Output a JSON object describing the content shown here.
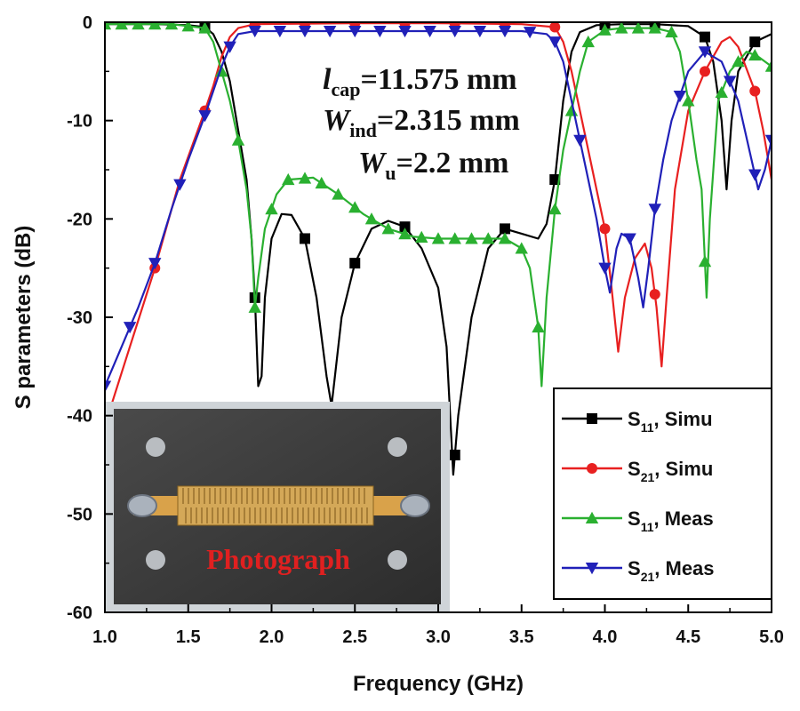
{
  "chart_data": {
    "type": "line",
    "xlabel": "Frequency (GHz)",
    "ylabel": "S parameters (dB)",
    "xlim": [
      1.0,
      5.0
    ],
    "ylim": [
      -60,
      0
    ],
    "xticks": [
      1.0,
      1.5,
      2.0,
      2.5,
      3.0,
      3.5,
      4.0,
      4.5,
      5.0
    ],
    "xtick_labels": [
      "1.0",
      "1.5",
      "2.0",
      "2.5",
      "3.0",
      "3.5",
      "4.0",
      "4.5",
      "5.0"
    ],
    "yticks": [
      0,
      -10,
      -20,
      -30,
      -40,
      -50,
      -60
    ],
    "ytick_labels": [
      "0",
      "-10",
      "-20",
      "-30",
      "-40",
      "-50",
      "-60"
    ],
    "annotations": [
      {
        "main": "l",
        "sub": "cap",
        "rest": "=11.575 mm"
      },
      {
        "main": "W",
        "sub": "ind",
        "rest": "=2.315 mm"
      },
      {
        "main": "W",
        "sub": "u",
        "rest": "=2.2 mm"
      }
    ],
    "inset_caption": "Photograph",
    "legend_position": "bottom-right",
    "series": [
      {
        "name": "S11, Simu",
        "legend_main": "S",
        "legend_sub": "11",
        "legend_rest": ", Simu",
        "color": "#000000",
        "marker": "square",
        "points": [
          [
            1.0,
            -0.2
          ],
          [
            1.3,
            -0.2
          ],
          [
            1.5,
            -0.3
          ],
          [
            1.6,
            -0.5
          ],
          [
            1.65,
            -1.2
          ],
          [
            1.7,
            -3
          ],
          [
            1.75,
            -6
          ],
          [
            1.8,
            -11
          ],
          [
            1.85,
            -16
          ],
          [
            1.88,
            -22
          ],
          [
            1.9,
            -28
          ],
          [
            1.92,
            -37
          ],
          [
            1.94,
            -36
          ],
          [
            1.96,
            -28
          ],
          [
            2.0,
            -22
          ],
          [
            2.06,
            -19.5
          ],
          [
            2.12,
            -19.6
          ],
          [
            2.2,
            -22
          ],
          [
            2.27,
            -28
          ],
          [
            2.33,
            -36
          ],
          [
            2.36,
            -39
          ],
          [
            2.38,
            -36
          ],
          [
            2.42,
            -30
          ],
          [
            2.5,
            -24.5
          ],
          [
            2.6,
            -21
          ],
          [
            2.7,
            -20.2
          ],
          [
            2.8,
            -20.8
          ],
          [
            2.9,
            -23
          ],
          [
            3.0,
            -27
          ],
          [
            3.05,
            -33
          ],
          [
            3.09,
            -46
          ],
          [
            3.12,
            -40
          ],
          [
            3.2,
            -30
          ],
          [
            3.3,
            -23
          ],
          [
            3.4,
            -21
          ],
          [
            3.5,
            -21.5
          ],
          [
            3.6,
            -22
          ],
          [
            3.65,
            -20.5
          ],
          [
            3.7,
            -16
          ],
          [
            3.75,
            -8
          ],
          [
            3.8,
            -3
          ],
          [
            3.85,
            -1
          ],
          [
            3.95,
            -0.3
          ],
          [
            4.1,
            -0.2
          ],
          [
            4.3,
            -0.2
          ],
          [
            4.5,
            -0.4
          ],
          [
            4.6,
            -1.5
          ],
          [
            4.65,
            -4
          ],
          [
            4.7,
            -10
          ],
          [
            4.73,
            -17
          ],
          [
            4.76,
            -10
          ],
          [
            4.8,
            -5
          ],
          [
            4.9,
            -2
          ],
          [
            5.0,
            -1.2
          ]
        ],
        "marker_x": [
          1.6,
          1.9,
          2.2,
          2.5,
          2.8,
          3.1,
          3.4,
          3.7,
          4.0,
          4.3,
          4.6,
          4.9
        ]
      },
      {
        "name": "S21, Simu",
        "legend_main": "S",
        "legend_sub": "21",
        "legend_rest": ", Simu",
        "color": "#e82020",
        "marker": "circle",
        "points": [
          [
            1.0,
            -41
          ],
          [
            1.15,
            -33
          ],
          [
            1.3,
            -25
          ],
          [
            1.45,
            -16
          ],
          [
            1.6,
            -9
          ],
          [
            1.65,
            -6.5
          ],
          [
            1.7,
            -3.5
          ],
          [
            1.75,
            -1.5
          ],
          [
            1.8,
            -0.6
          ],
          [
            1.9,
            -0.2
          ],
          [
            2.5,
            -0.1
          ],
          [
            3.0,
            -0.1
          ],
          [
            3.5,
            -0.2
          ],
          [
            3.7,
            -0.5
          ],
          [
            3.75,
            -2
          ],
          [
            3.8,
            -5
          ],
          [
            3.85,
            -9
          ],
          [
            3.9,
            -13
          ],
          [
            3.95,
            -17
          ],
          [
            4.0,
            -21
          ],
          [
            4.04,
            -27
          ],
          [
            4.08,
            -33.5
          ],
          [
            4.12,
            -28
          ],
          [
            4.18,
            -24
          ],
          [
            4.24,
            -22.5
          ],
          [
            4.28,
            -25
          ],
          [
            4.31,
            -29
          ],
          [
            4.34,
            -35
          ],
          [
            4.37,
            -28
          ],
          [
            4.42,
            -17
          ],
          [
            4.5,
            -9
          ],
          [
            4.6,
            -5
          ],
          [
            4.7,
            -2
          ],
          [
            4.75,
            -1.5
          ],
          [
            4.8,
            -2.5
          ],
          [
            4.9,
            -7
          ],
          [
            4.95,
            -11
          ],
          [
            5.0,
            -16
          ]
        ],
        "marker_x": [
          1.3,
          1.6,
          1.9,
          2.2,
          2.5,
          2.8,
          3.1,
          3.4,
          3.7,
          4.0,
          4.3,
          4.6,
          4.9
        ]
      },
      {
        "name": "S11, Meas",
        "legend_main": "S",
        "legend_sub": "11",
        "legend_rest": ", Meas",
        "color": "#2ab030",
        "marker": "triangle-up",
        "points": [
          [
            1.0,
            -0.2
          ],
          [
            1.4,
            -0.2
          ],
          [
            1.6,
            -0.6
          ],
          [
            1.65,
            -2
          ],
          [
            1.7,
            -5
          ],
          [
            1.75,
            -8
          ],
          [
            1.8,
            -12
          ],
          [
            1.85,
            -17
          ],
          [
            1.88,
            -22
          ],
          [
            1.9,
            -29
          ],
          [
            1.92,
            -26
          ],
          [
            1.96,
            -21
          ],
          [
            2.03,
            -17.5
          ],
          [
            2.1,
            -16
          ],
          [
            2.25,
            -15.8
          ],
          [
            2.4,
            -17.5
          ],
          [
            2.55,
            -19.5
          ],
          [
            2.7,
            -21
          ],
          [
            2.85,
            -21.8
          ],
          [
            3.0,
            -22
          ],
          [
            3.2,
            -22
          ],
          [
            3.4,
            -22
          ],
          [
            3.5,
            -23
          ],
          [
            3.55,
            -25
          ],
          [
            3.6,
            -31
          ],
          [
            3.62,
            -37
          ],
          [
            3.65,
            -28
          ],
          [
            3.7,
            -19
          ],
          [
            3.75,
            -13
          ],
          [
            3.8,
            -9
          ],
          [
            3.85,
            -5
          ],
          [
            3.9,
            -2
          ],
          [
            4.0,
            -0.8
          ],
          [
            4.1,
            -0.6
          ],
          [
            4.3,
            -0.6
          ],
          [
            4.4,
            -1
          ],
          [
            4.45,
            -3
          ],
          [
            4.5,
            -8
          ],
          [
            4.55,
            -14
          ],
          [
            4.58,
            -17
          ],
          [
            4.61,
            -28
          ],
          [
            4.63,
            -20
          ],
          [
            4.68,
            -8
          ],
          [
            4.75,
            -5
          ],
          [
            4.85,
            -3
          ],
          [
            4.92,
            -3.5
          ],
          [
            5.0,
            -4.5
          ]
        ],
        "marker_x": [
          1.0,
          1.1,
          1.2,
          1.3,
          1.4,
          1.5,
          1.6,
          1.7,
          1.8,
          1.9,
          2.0,
          2.1,
          2.2,
          2.3,
          2.4,
          2.5,
          2.6,
          2.7,
          2.8,
          2.9,
          3.0,
          3.1,
          3.2,
          3.3,
          3.4,
          3.5,
          3.6,
          3.7,
          3.8,
          3.9,
          4.0,
          4.1,
          4.2,
          4.3,
          4.4,
          4.5,
          4.6,
          4.7,
          4.8,
          4.9,
          5.0
        ]
      },
      {
        "name": "S21, Meas",
        "legend_main": "S",
        "legend_sub": "21",
        "legend_rest": ", Meas",
        "color": "#2020b8",
        "marker": "triangle-down",
        "points": [
          [
            1.0,
            -37
          ],
          [
            1.1,
            -33
          ],
          [
            1.2,
            -29
          ],
          [
            1.3,
            -24.5
          ],
          [
            1.4,
            -19
          ],
          [
            1.5,
            -14
          ],
          [
            1.6,
            -9.5
          ],
          [
            1.65,
            -7
          ],
          [
            1.7,
            -4.5
          ],
          [
            1.75,
            -2.5
          ],
          [
            1.8,
            -1.2
          ],
          [
            1.9,
            -0.9
          ],
          [
            2.5,
            -0.9
          ],
          [
            3.0,
            -0.9
          ],
          [
            3.5,
            -0.9
          ],
          [
            3.65,
            -1.2
          ],
          [
            3.7,
            -2
          ],
          [
            3.75,
            -4
          ],
          [
            3.8,
            -8
          ],
          [
            3.85,
            -12
          ],
          [
            3.9,
            -16
          ],
          [
            3.95,
            -20
          ],
          [
            4.0,
            -25
          ],
          [
            4.03,
            -27.5
          ],
          [
            4.07,
            -23
          ],
          [
            4.1,
            -21.5
          ],
          [
            4.15,
            -22
          ],
          [
            4.2,
            -26
          ],
          [
            4.23,
            -29
          ],
          [
            4.26,
            -25
          ],
          [
            4.3,
            -19
          ],
          [
            4.35,
            -14
          ],
          [
            4.4,
            -10
          ],
          [
            4.5,
            -5
          ],
          [
            4.6,
            -3
          ],
          [
            4.7,
            -4
          ],
          [
            4.8,
            -8
          ],
          [
            4.88,
            -14
          ],
          [
            4.92,
            -17
          ],
          [
            4.96,
            -15
          ],
          [
            5.0,
            -12
          ]
        ],
        "marker_x": [
          1.0,
          1.15,
          1.3,
          1.45,
          1.6,
          1.75,
          1.9,
          2.05,
          2.2,
          2.35,
          2.5,
          2.65,
          2.8,
          2.95,
          3.1,
          3.25,
          3.4,
          3.55,
          3.7,
          3.85,
          4.0,
          4.15,
          4.3,
          4.45,
          4.6,
          4.75,
          4.9,
          5.0
        ]
      }
    ]
  }
}
